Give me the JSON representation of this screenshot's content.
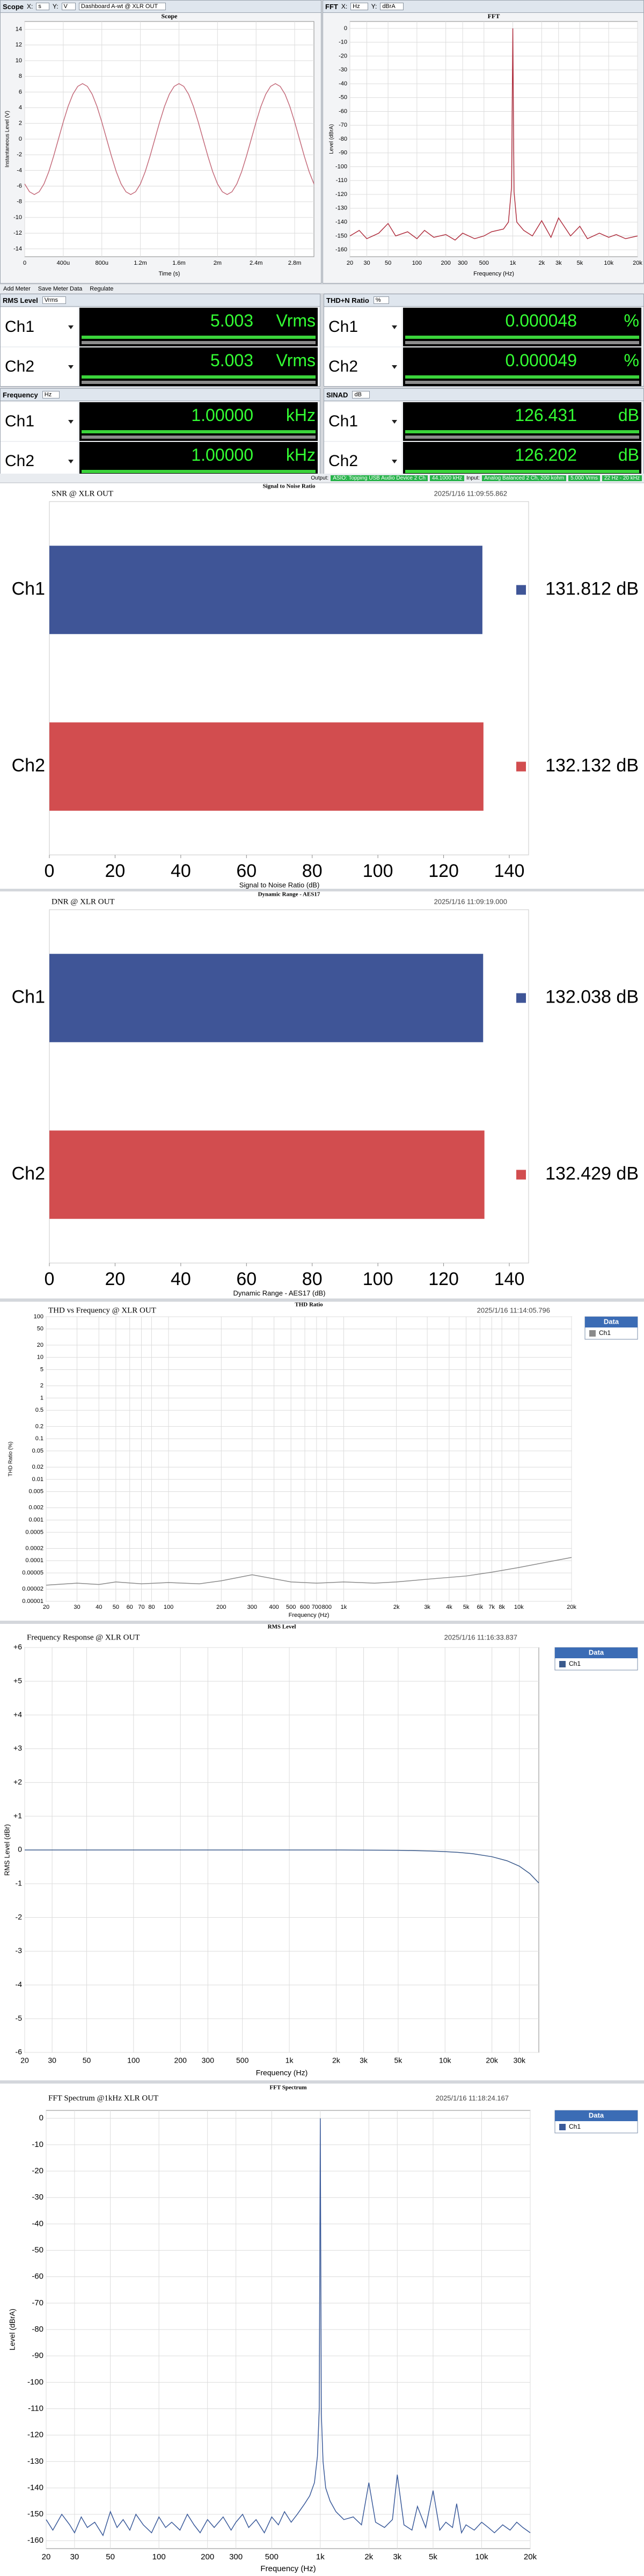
{
  "dashboard": {
    "scope_header": {
      "title": "Scope",
      "x_label": "X:",
      "x_unit": "s",
      "y_label": "Y:",
      "y_unit": "V",
      "source": "Dashboard A-wt @ XLR OUT"
    },
    "fft_header": {
      "title": "FFT",
      "x_label": "X:",
      "x_unit": "Hz",
      "y_label": "Y:",
      "y_unit": "dBrA"
    },
    "toolbar": [
      "Add Meter",
      "Save Meter Data",
      "Regulate"
    ],
    "meters": [
      {
        "title": "RMS Level",
        "unit": "Vrms",
        "rows": [
          {
            "channel": "Ch1",
            "value": "5.003",
            "unit": "Vrms"
          },
          {
            "channel": "Ch2",
            "value": "5.003",
            "unit": "Vrms"
          }
        ]
      },
      {
        "title": "THD+N Ratio",
        "unit": "%",
        "rows": [
          {
            "channel": "Ch1",
            "value": "0.000048",
            "unit": "%"
          },
          {
            "channel": "Ch2",
            "value": "0.000049",
            "unit": "%"
          }
        ]
      },
      {
        "title": "Frequency",
        "unit": "Hz",
        "rows": [
          {
            "channel": "Ch1",
            "value": "1.00000",
            "unit": "kHz"
          },
          {
            "channel": "Ch2",
            "value": "1.00000",
            "unit": "kHz"
          }
        ]
      },
      {
        "title": "SINAD",
        "unit": "dB",
        "rows": [
          {
            "channel": "Ch1",
            "value": "126.431",
            "unit": "dB"
          },
          {
            "channel": "Ch2",
            "value": "126.202",
            "unit": "dB"
          }
        ]
      }
    ],
    "status": {
      "output_label": "Output:",
      "output": "ASIO: Topping USB Audio Device 2 Ch",
      "rate": "44.1000 kHz",
      "input_label": "Input:",
      "input": "Analog Balanced 2 Ch, 200 kohm",
      "range": "5.000 Vrms",
      "bandwidth": "22 Hz - 20 kHz"
    }
  },
  "chart_data": [
    {
      "type": "line",
      "title": "Scope",
      "xlabel": "Time (s)",
      "ylabel": "Instantaneous Level (V)",
      "x": [
        0,
        5e-05,
        0.0001,
        0.00015,
        0.0002,
        0.00025,
        0.0003,
        0.00035,
        0.0004,
        0.00045,
        0.0005,
        0.00055,
        0.0006,
        0.00065,
        0.0007,
        0.00075,
        0.0008,
        0.00085,
        0.0009,
        0.00095,
        0.001,
        0.00105,
        0.0011,
        0.00115,
        0.0012,
        0.00125,
        0.0013,
        0.00135,
        0.0014,
        0.00145,
        0.0015,
        0.00155,
        0.0016,
        0.00165,
        0.0017,
        0.00175,
        0.0018,
        0.00185,
        0.0019,
        0.00195,
        0.002,
        0.00205,
        0.0021,
        0.00215,
        0.0022,
        0.00225,
        0.0023,
        0.00235,
        0.0024,
        0.00245,
        0.0025,
        0.00255,
        0.0026,
        0.00265,
        0.0027,
        0.00275,
        0.0028,
        0.00285,
        0.0029,
        0.00295,
        0.003
      ],
      "series": [
        {
          "color": "#c46a7a",
          "values": [
            -5.72,
            -6.72,
            -7.07,
            -6.72,
            -5.72,
            -4.16,
            -2.18,
            0,
            2.18,
            4.16,
            5.72,
            6.72,
            7.07,
            6.72,
            5.72,
            4.16,
            2.18,
            0,
            -2.18,
            -4.16,
            -5.72,
            -6.72,
            -7.07,
            -6.72,
            -5.72,
            -4.16,
            -2.18,
            0,
            2.18,
            4.16,
            5.72,
            6.72,
            7.07,
            6.72,
            5.72,
            4.16,
            2.18,
            0,
            -2.18,
            -4.16,
            -5.72,
            -6.72,
            -7.07,
            -6.72,
            -5.72,
            -4.16,
            -2.18,
            0,
            2.18,
            4.16,
            5.72,
            6.72,
            7.07,
            6.72,
            5.72,
            4.16,
            2.18,
            0,
            -2.18,
            -4.16,
            -5.72
          ]
        }
      ],
      "xlim": [
        0,
        0.003
      ],
      "ylim": [
        -15,
        15
      ],
      "xticks": [
        0,
        {
          "value": 0.0004,
          "label": "400u"
        },
        {
          "value": 0.0008,
          "label": "800u"
        },
        {
          "value": 0.0012,
          "label": "1.2m"
        },
        {
          "value": 0.0016,
          "label": "1.6m"
        },
        {
          "value": 0.002,
          "label": "2m"
        },
        {
          "value": 0.0024,
          "label": "2.4m"
        },
        {
          "value": 0.0028,
          "label": "2.8m"
        }
      ],
      "yticks": [
        14,
        12,
        10,
        8,
        6,
        4,
        2,
        0,
        -2,
        -4,
        -6,
        -8,
        -10,
        -12,
        -14
      ],
      "grid": true
    },
    {
      "type": "line",
      "title": "FFT",
      "xlabel": "Frequency (Hz)",
      "ylabel": "Level (dBrA)",
      "xlog": true,
      "x": [
        20,
        25,
        30,
        40,
        50,
        60,
        80,
        100,
        120,
        150,
        200,
        250,
        300,
        400,
        500,
        600,
        800,
        900,
        970,
        1000,
        1030,
        1100,
        1300,
        1600,
        2000,
        2500,
        3000,
        4000,
        5000,
        6000,
        8000,
        10000,
        12000,
        15000,
        20000
      ],
      "series": [
        {
          "color": "#b03040",
          "values": [
            -150,
            -146,
            -152,
            -148,
            -141,
            -150,
            -147,
            -152,
            -146,
            -151,
            -149,
            -153,
            -148,
            -152,
            -150,
            -147,
            -145,
            -140,
            -115,
            0,
            -118,
            -140,
            -146,
            -150,
            -139,
            -151,
            -137,
            -150,
            -143,
            -152,
            -148,
            -151,
            -149,
            -152,
            -150
          ]
        }
      ],
      "xlim": [
        20,
        20000
      ],
      "ylim": [
        -165,
        5
      ],
      "xticks": [
        20,
        30,
        50,
        100,
        200,
        300,
        500,
        {
          "value": 1000,
          "label": "1k"
        },
        {
          "value": 2000,
          "label": "2k"
        },
        {
          "value": 3000,
          "label": "3k"
        },
        {
          "value": 5000,
          "label": "5k"
        },
        {
          "value": 10000,
          "label": "10k"
        },
        {
          "value": 20000,
          "label": "20k"
        }
      ],
      "yticks": [
        0,
        -10,
        -20,
        -30,
        -40,
        -50,
        -60,
        -70,
        -80,
        -90,
        -100,
        -110,
        -120,
        -130,
        -140,
        -150,
        -160
      ],
      "grid": true
    },
    {
      "type": "bar",
      "horizontal": true,
      "title": "Signal to Noise Ratio",
      "subtitle": "SNR @ XLR OUT",
      "timestamp": "2025/1/16 11:09:55.862",
      "xlabel": "Signal to Noise Ratio (dB)",
      "categories": [
        "Ch1",
        "Ch2"
      ],
      "values": [
        131.812,
        132.132
      ],
      "value_labels": [
        "131.812 dB",
        "132.132 dB"
      ],
      "colors": [
        "#3f5597",
        "#d24d4f"
      ],
      "xlim": [
        0,
        140
      ],
      "xticks": [
        0,
        20,
        40,
        60,
        80,
        100,
        120,
        140
      ]
    },
    {
      "type": "bar",
      "horizontal": true,
      "title": "Dynamic Range - AES17",
      "subtitle": "DNR @ XLR OUT",
      "timestamp": "2025/1/16 11:09:19.000",
      "xlabel": "Dynamic Range - AES17 (dB)",
      "categories": [
        "Ch1",
        "Ch2"
      ],
      "values": [
        132.038,
        132.429
      ],
      "value_labels": [
        "132.038 dB",
        "132.429 dB"
      ],
      "colors": [
        "#3f5597",
        "#d24d4f"
      ],
      "xlim": [
        0,
        140
      ],
      "xticks": [
        0,
        20,
        40,
        60,
        80,
        100,
        120,
        140
      ]
    },
    {
      "type": "line",
      "title": "THD Ratio",
      "subtitle": "THD vs Frequency @ XLR OUT",
      "timestamp": "2025/1/16 11:14:05.796",
      "xlabel": "Frequency (Hz)",
      "ylabel": "THD Ratio (%)",
      "xlog": true,
      "ylog": true,
      "legend_title": "Data",
      "x": [
        20,
        30,
        40,
        50,
        70,
        100,
        150,
        200,
        300,
        500,
        700,
        1000,
        1500,
        2000,
        3000,
        5000,
        7000,
        10000,
        15000,
        20000
      ],
      "series": [
        {
          "name": "Ch1",
          "color": "#8a8a8a",
          "values": [
            2.5e-05,
            2.8e-05,
            2.6e-05,
            3e-05,
            2.7e-05,
            2.9e-05,
            2.7e-05,
            3.2e-05,
            4.5e-05,
            3e-05,
            2.8e-05,
            3e-05,
            2.8e-05,
            3e-05,
            3.5e-05,
            4.2e-05,
            5.2e-05,
            6.8e-05,
            9.5e-05,
            0.00012
          ]
        }
      ],
      "xlim": [
        20,
        20000
      ],
      "ylim": [
        1e-05,
        100
      ],
      "xticks": [
        20,
        30,
        40,
        50,
        60,
        70,
        80,
        100,
        200,
        300,
        400,
        500,
        600,
        700,
        800,
        {
          "value": 1000,
          "label": "1k"
        },
        {
          "value": 2000,
          "label": "2k"
        },
        {
          "value": 3000,
          "label": "3k"
        },
        {
          "value": 4000,
          "label": "4k"
        },
        {
          "value": 5000,
          "label": "5k"
        },
        {
          "value": 6000,
          "label": "6k"
        },
        {
          "value": 7000,
          "label": "7k"
        },
        {
          "value": 8000,
          "label": "8k"
        },
        {
          "value": 10000,
          "label": "10k"
        },
        {
          "value": 20000,
          "label": "20k"
        }
      ],
      "yticks": [
        100,
        50,
        20,
        10,
        5,
        2,
        1,
        0.5,
        0.2,
        0.1,
        0.05,
        0.02,
        0.01,
        0.005,
        0.002,
        0.001,
        0.0005,
        0.0002,
        0.0001,
        5e-05,
        2e-05,
        1e-05
      ],
      "grid": true
    },
    {
      "type": "line",
      "title": "RMS Level",
      "subtitle": "Frequency Response @ XLR OUT",
      "timestamp": "2025/1/16 11:16:33.837",
      "xlabel": "Frequency (Hz)",
      "ylabel": "RMS Level (dBr)",
      "xlog": true,
      "legend_title": "Data",
      "x": [
        20,
        30,
        50,
        100,
        200,
        500,
        1000,
        2000,
        5000,
        8000,
        10000,
        12000,
        15000,
        20000,
        25000,
        30000,
        35000,
        40000
      ],
      "series": [
        {
          "name": "Ch1",
          "color": "#3a5a8c",
          "values": [
            0,
            0,
            0,
            0,
            0,
            0,
            0,
            0,
            -0.01,
            -0.03,
            -0.05,
            -0.07,
            -0.11,
            -0.2,
            -0.32,
            -0.48,
            -0.7,
            -0.98
          ]
        }
      ],
      "xlim": [
        20,
        40000
      ],
      "ylim": [
        -6,
        6
      ],
      "xticks": [
        20,
        30,
        50,
        100,
        200,
        300,
        500,
        {
          "value": 1000,
          "label": "1k"
        },
        {
          "value": 2000,
          "label": "2k"
        },
        {
          "value": 3000,
          "label": "3k"
        },
        {
          "value": 5000,
          "label": "5k"
        },
        {
          "value": 10000,
          "label": "10k"
        },
        {
          "value": 20000,
          "label": "20k"
        },
        {
          "value": 30000,
          "label": "30k"
        }
      ],
      "yticks": [
        {
          "value": 6,
          "label": "+6"
        },
        {
          "value": 5,
          "label": "+5"
        },
        {
          "value": 4,
          "label": "+4"
        },
        {
          "value": 3,
          "label": "+3"
        },
        {
          "value": 2,
          "label": "+2"
        },
        {
          "value": 1,
          "label": "+1"
        },
        0,
        -1,
        -2,
        -3,
        -4,
        -5,
        -6
      ],
      "grid": true
    },
    {
      "type": "line",
      "title": "FFT Spectrum",
      "subtitle": "FFT Spectrum @1kHz XLR OUT",
      "timestamp": "2025/1/16 11:18:24.167",
      "xlabel": "Frequency (Hz)",
      "ylabel": "Level (dBrA)",
      "xlog": true,
      "legend_title": "Data",
      "x": [
        20,
        22,
        25,
        28,
        30,
        33,
        36,
        40,
        45,
        50,
        55,
        60,
        66,
        72,
        80,
        90,
        100,
        110,
        120,
        135,
        150,
        165,
        180,
        200,
        220,
        250,
        280,
        300,
        330,
        360,
        400,
        450,
        500,
        550,
        600,
        660,
        720,
        800,
        860,
        920,
        960,
        985,
        1000,
        1015,
        1040,
        1080,
        1150,
        1250,
        1400,
        1600,
        1800,
        2000,
        2200,
        2500,
        2800,
        3000,
        3300,
        3700,
        4000,
        4500,
        5000,
        5500,
        6000,
        6600,
        7000,
        7500,
        8000,
        9000,
        10000,
        11000,
        12000,
        13500,
        15000,
        16500,
        18000,
        20000
      ],
      "series": [
        {
          "name": "Ch1",
          "color": "#3a5a9a",
          "values": [
            -152,
            -156,
            -150,
            -154,
            -157,
            -151,
            -155,
            -153,
            -158,
            -149,
            -155,
            -152,
            -156,
            -150,
            -154,
            -157,
            -151,
            -155,
            -153,
            -156,
            -150,
            -154,
            -157,
            -152,
            -155,
            -151,
            -156,
            -153,
            -150,
            -155,
            -152,
            -157,
            -151,
            -154,
            -149,
            -153,
            -150,
            -146,
            -143,
            -138,
            -128,
            -110,
            0,
            -112,
            -130,
            -140,
            -145,
            -149,
            -152,
            -151,
            -154,
            -138,
            -153,
            -155,
            -152,
            -135,
            -154,
            -156,
            -147,
            -155,
            -141,
            -156,
            -153,
            -155,
            -146,
            -157,
            -154,
            -156,
            -153,
            -155,
            -157,
            -154,
            -156,
            -153,
            -155,
            -157
          ]
        }
      ],
      "xlim": [
        20,
        20000
      ],
      "ylim": [
        -163,
        3
      ],
      "xticks": [
        20,
        30,
        50,
        100,
        200,
        300,
        500,
        {
          "value": 1000,
          "label": "1k"
        },
        {
          "value": 2000,
          "label": "2k"
        },
        {
          "value": 3000,
          "label": "3k"
        },
        {
          "value": 5000,
          "label": "5k"
        },
        {
          "value": 10000,
          "label": "10k"
        },
        {
          "value": 20000,
          "label": "20k"
        }
      ],
      "yticks": [
        0,
        -10,
        -20,
        -30,
        -40,
        -50,
        -60,
        -70,
        -80,
        -90,
        -100,
        -110,
        -120,
        -130,
        -140,
        -150,
        -160
      ],
      "grid": true
    }
  ]
}
